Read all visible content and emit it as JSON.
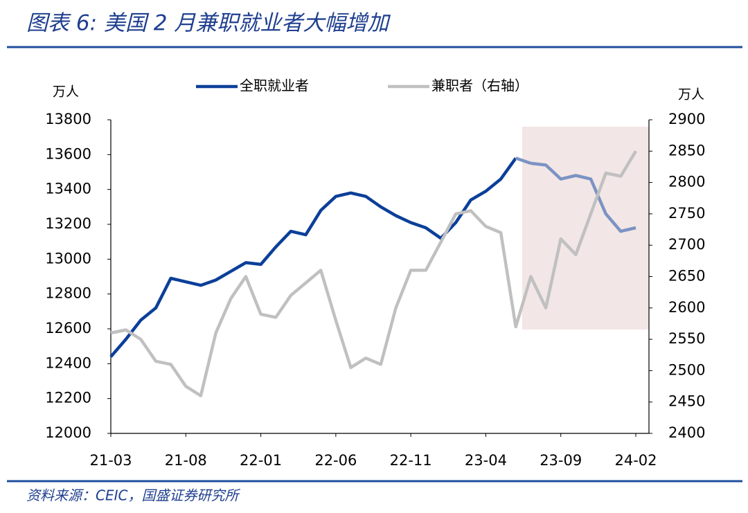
{
  "chart_data": {
    "type": "line",
    "title": "图表 6:  美国 2 月兼职就业者大幅增加",
    "source": "资料来源：CEIC，国盛证券研究所",
    "ylabel": "万人",
    "y2label": "万人",
    "categories": [
      "21-03",
      "21-04",
      "21-05",
      "21-06",
      "21-07",
      "21-08",
      "21-09",
      "21-10",
      "21-11",
      "21-12",
      "22-01",
      "22-02",
      "22-03",
      "22-04",
      "22-05",
      "22-06",
      "22-07",
      "22-08",
      "22-09",
      "22-10",
      "22-11",
      "22-12",
      "23-01",
      "23-02",
      "23-03",
      "23-04",
      "23-05",
      "23-06",
      "23-07",
      "23-08",
      "23-09",
      "23-10",
      "23-11",
      "23-12",
      "24-01",
      "24-02"
    ],
    "xticks": [
      "21-03",
      "21-08",
      "22-01",
      "22-06",
      "22-11",
      "23-04",
      "23-09",
      "24-02"
    ],
    "series": [
      {
        "name": "全职就业者",
        "color": "#0b3f99",
        "highlight_color": "#7b93c4",
        "values": [
          12440,
          12540,
          12650,
          12720,
          12890,
          12870,
          12850,
          12880,
          12930,
          12980,
          12970,
          13070,
          13160,
          13140,
          13280,
          13360,
          13380,
          13360,
          13300,
          13250,
          13210,
          13180,
          13120,
          13210,
          13340,
          13390,
          13460,
          13580,
          13550,
          13540,
          13460,
          13480,
          13460,
          13260,
          13160,
          13180
        ]
      },
      {
        "name": "兼职者（右轴）",
        "color": "#c0c0c0",
        "axis": "y2",
        "values": [
          2560,
          2565,
          2550,
          2515,
          2510,
          2475,
          2460,
          2560,
          2615,
          2650,
          2590,
          2585,
          2620,
          2640,
          2660,
          2580,
          2505,
          2520,
          2510,
          2600,
          2660,
          2660,
          2705,
          2750,
          2755,
          2730,
          2720,
          2570,
          2650,
          2600,
          2710,
          2685,
          2750,
          2815,
          2810,
          2850
        ]
      }
    ],
    "ylim": [
      12000,
      13800
    ],
    "yticks": [
      12000,
      12200,
      12400,
      12600,
      12800,
      13000,
      13200,
      13400,
      13600,
      13800
    ],
    "y2lim": [
      2400,
      2900
    ],
    "y2ticks": [
      2400,
      2450,
      2500,
      2550,
      2600,
      2650,
      2700,
      2750,
      2800,
      2850,
      2900
    ],
    "highlight_from": "23-06"
  }
}
